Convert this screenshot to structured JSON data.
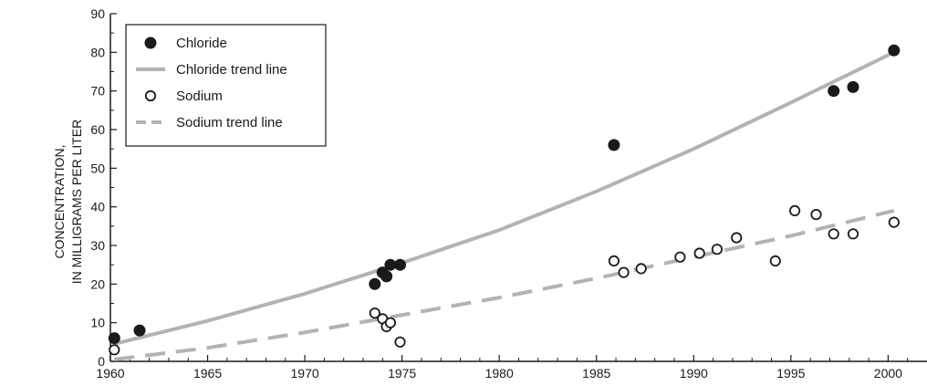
{
  "chart_data": {
    "type": "scatter",
    "title": "",
    "xlabel": "",
    "ylabel": [
      "CONCENTRATION,",
      "IN MILLIGRAMS PER LITER"
    ],
    "xlim": [
      1960,
      2002
    ],
    "ylim": [
      0,
      90
    ],
    "x_ticks": [
      1960,
      1965,
      1970,
      1975,
      1980,
      1985,
      1990,
      1995,
      2000
    ],
    "y_ticks": [
      0,
      10,
      20,
      30,
      40,
      50,
      60,
      70,
      80,
      90
    ],
    "grid": false,
    "legend_position": "top-left",
    "colors": {
      "marker": "#1a1a1a",
      "trend": "#b3b3b3",
      "axis": "#1a1a1a"
    },
    "series": [
      {
        "name": "Chloride",
        "kind": "points",
        "marker": "filled-circle",
        "points": [
          [
            1960.2,
            6
          ],
          [
            1961.5,
            8
          ],
          [
            1973.6,
            20
          ],
          [
            1974.0,
            23
          ],
          [
            1974.2,
            22
          ],
          [
            1974.4,
            25
          ],
          [
            1974.9,
            25
          ],
          [
            1985.9,
            56
          ],
          [
            1997.2,
            70
          ],
          [
            1998.2,
            71
          ],
          [
            2000.3,
            80.5
          ]
        ]
      },
      {
        "name": "Chloride trend line",
        "kind": "line",
        "style": "solid",
        "points": [
          [
            1960.2,
            4.5
          ],
          [
            1965,
            10.5
          ],
          [
            1970,
            17.5
          ],
          [
            1975,
            25.5
          ],
          [
            1980,
            34
          ],
          [
            1985,
            44
          ],
          [
            1990,
            55
          ],
          [
            1995,
            67
          ],
          [
            2000.3,
            80
          ]
        ]
      },
      {
        "name": "Sodium",
        "kind": "points",
        "marker": "open-circle",
        "points": [
          [
            1960.2,
            3
          ],
          [
            1973.6,
            12.5
          ],
          [
            1974.0,
            11
          ],
          [
            1974.2,
            9
          ],
          [
            1974.4,
            10
          ],
          [
            1974.9,
            5
          ],
          [
            1985.9,
            26
          ],
          [
            1986.4,
            23
          ],
          [
            1987.3,
            24
          ],
          [
            1989.3,
            27
          ],
          [
            1990.3,
            28
          ],
          [
            1991.2,
            29
          ],
          [
            1992.2,
            32
          ],
          [
            1994.2,
            26
          ],
          [
            1995.2,
            39
          ],
          [
            1996.3,
            38
          ],
          [
            1997.2,
            33
          ],
          [
            1998.2,
            33
          ],
          [
            2000.3,
            36
          ]
        ]
      },
      {
        "name": "Sodium trend line",
        "kind": "line",
        "style": "dashed",
        "points": [
          [
            1960.2,
            0.5
          ],
          [
            1965,
            3.5
          ],
          [
            1970,
            7.5
          ],
          [
            1975,
            12
          ],
          [
            1980,
            16.5
          ],
          [
            1985,
            21.5
          ],
          [
            1990,
            27
          ],
          [
            1995,
            32.5
          ],
          [
            2000.3,
            39
          ]
        ]
      }
    ]
  }
}
